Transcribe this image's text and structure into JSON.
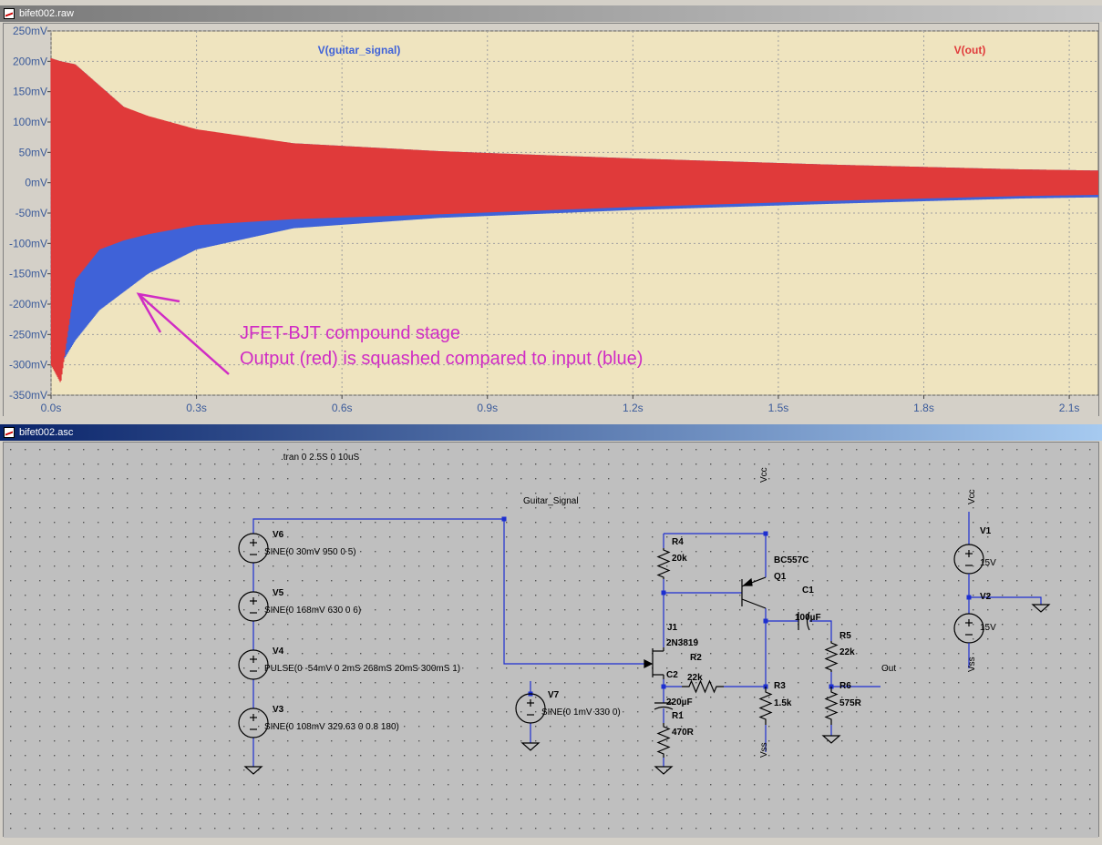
{
  "waveform_window": {
    "title": "bifet002.raw",
    "trace_labels": {
      "input": "V(guitar_signal)",
      "output": "V(out)"
    },
    "annotation": {
      "line1": "JFET-BJT compound stage",
      "line2": "Output (red) is squashed compared to input (blue)"
    },
    "colors": {
      "background": "#efe4bf",
      "input": "#3f62d8",
      "output": "#e03a3a",
      "annotation": "#d02cc4",
      "grid": "#a0a0a0"
    }
  },
  "chart_data": {
    "type": "line",
    "title": "",
    "xlabel": "",
    "ylabel": "",
    "xlim": [
      0.0,
      2.16
    ],
    "ylim": [
      -350,
      250
    ],
    "x_ticks": [
      "0.0s",
      "0.3s",
      "0.6s",
      "0.9s",
      "1.2s",
      "1.5s",
      "1.8s",
      "2.1s"
    ],
    "x_tick_values": [
      0.0,
      0.3,
      0.6,
      0.9,
      1.2,
      1.5,
      1.8,
      2.1
    ],
    "y_ticks": [
      "250mV",
      "200mV",
      "150mV",
      "100mV",
      "50mV",
      "0mV",
      "-50mV",
      "-100mV",
      "-150mV",
      "-200mV",
      "-250mV",
      "-300mV",
      "-350mV"
    ],
    "y_tick_values": [
      250,
      200,
      150,
      100,
      50,
      0,
      -50,
      -100,
      -150,
      -200,
      -250,
      -300,
      -350
    ],
    "grid": true,
    "series": [
      {
        "name": "V(guitar_signal)",
        "color": "#3f62d8",
        "envelope_t": [
          0.0,
          0.02,
          0.05,
          0.1,
          0.15,
          0.2,
          0.3,
          0.5,
          0.8,
          1.2,
          1.6,
          2.0,
          2.16
        ],
        "envelope_upper": [
          205,
          200,
          195,
          160,
          125,
          105,
          85,
          65,
          52,
          40,
          30,
          22,
          20
        ],
        "envelope_lower": [
          -280,
          -300,
          -260,
          -210,
          -180,
          -150,
          -110,
          -75,
          -58,
          -45,
          -35,
          -26,
          -24
        ]
      },
      {
        "name": "V(out)",
        "color": "#e03a3a",
        "envelope_t": [
          0.0,
          0.02,
          0.05,
          0.1,
          0.15,
          0.2,
          0.3,
          0.5,
          0.8,
          1.2,
          1.6,
          2.0,
          2.16
        ],
        "envelope_upper": [
          205,
          200,
          195,
          160,
          125,
          110,
          88,
          65,
          52,
          40,
          30,
          22,
          20
        ],
        "envelope_lower": [
          -300,
          -330,
          -160,
          -110,
          -95,
          -85,
          -70,
          -60,
          -52,
          -40,
          -30,
          -22,
          -20
        ]
      }
    ]
  },
  "schematic_window": {
    "title": "bifet002.asc",
    "directive": ".tran 0 2.5S 0 10uS",
    "nets": {
      "guitar_signal": "Guitar_Signal",
      "out": "Out",
      "vcc": "Vcc",
      "vss": "Vss"
    },
    "sources": [
      {
        "ref": "V6",
        "value": "SINE(0 30mV 950 0 5)"
      },
      {
        "ref": "V5",
        "value": "SINE(0 168mV 630 0 6)"
      },
      {
        "ref": "V4",
        "value": "PULSE(0 -54mV 0 2mS 268mS 20mS 300mS 1)"
      },
      {
        "ref": "V3",
        "value": "SINE(0 108mV 329.63 0 0.8 180)"
      },
      {
        "ref": "V7",
        "value": "SINE(0 1mV 330 0)"
      },
      {
        "ref": "V1",
        "value": "15V"
      },
      {
        "ref": "V2",
        "value": "15V"
      }
    ],
    "components": {
      "R4": {
        "ref": "R4",
        "value": "20k"
      },
      "Q1": {
        "ref": "Q1",
        "value": "BC557C"
      },
      "C1": {
        "ref": "C1",
        "value": "100µF"
      },
      "J1": {
        "ref": "J1",
        "value": "2N3819"
      },
      "R2": {
        "ref": "R2",
        "value": "22k"
      },
      "C2": {
        "ref": "C2",
        "value": "220µF"
      },
      "R1": {
        "ref": "R1",
        "value": "470R"
      },
      "R3": {
        "ref": "R3",
        "value": "1.5k"
      },
      "R5": {
        "ref": "R5",
        "value": "22k"
      },
      "R6": {
        "ref": "R6",
        "value": "575R"
      }
    },
    "colors": {
      "background": "#bfbfbf",
      "wire": "#1d2fd0",
      "component": "#000000",
      "dot": "#555555"
    }
  }
}
